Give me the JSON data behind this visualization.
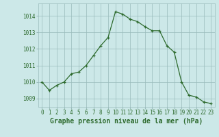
{
  "x": [
    0,
    1,
    2,
    3,
    4,
    5,
    6,
    7,
    8,
    9,
    10,
    11,
    12,
    13,
    14,
    15,
    16,
    17,
    18,
    19,
    20,
    21,
    22,
    23
  ],
  "y": [
    1010.0,
    1009.5,
    1009.8,
    1010.0,
    1010.5,
    1010.6,
    1011.0,
    1011.6,
    1012.2,
    1012.7,
    1014.25,
    1014.1,
    1013.8,
    1013.65,
    1013.35,
    1013.1,
    1013.1,
    1012.2,
    1011.8,
    1010.0,
    1009.2,
    1009.1,
    1008.8,
    1008.7
  ],
  "ylim": [
    1008.5,
    1014.75
  ],
  "yticks": [
    1009,
    1010,
    1011,
    1012,
    1013,
    1014
  ],
  "xticks": [
    0,
    1,
    2,
    3,
    4,
    5,
    6,
    7,
    8,
    9,
    10,
    11,
    12,
    13,
    14,
    15,
    16,
    17,
    18,
    19,
    20,
    21,
    22,
    23
  ],
  "xlabel": "Graphe pression niveau de la mer (hPa)",
  "line_color": "#2d6a2d",
  "marker_color": "#2d6a2d",
  "bg_color": "#cce8e8",
  "grid_color": "#99bbbb",
  "xlabel_color": "#2d6a2d",
  "tick_color": "#2d6a2d",
  "tick_fontsize": 5.5,
  "xlabel_fontsize": 7.0
}
